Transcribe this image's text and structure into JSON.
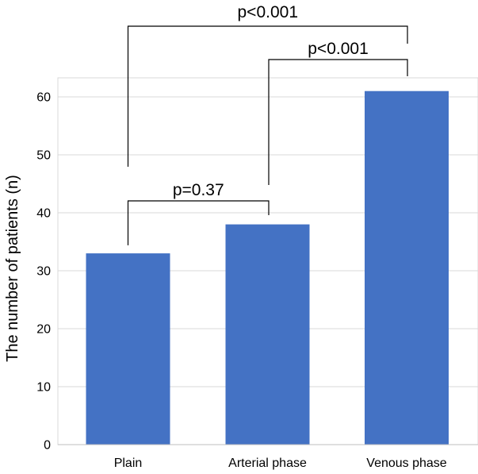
{
  "chart_data": {
    "type": "bar",
    "title": "",
    "xlabel": "",
    "ylabel": "The number of patients (n)",
    "categories": [
      "Plain",
      "Arterial phase",
      "Venous phase"
    ],
    "values": [
      33,
      38,
      61
    ],
    "ylim": [
      0,
      65
    ],
    "yticks": [
      0,
      10,
      20,
      30,
      40,
      50,
      60
    ],
    "grid": true,
    "legend": "none",
    "bar_color": "#4472C4",
    "grid_color": "#D9D9D9",
    "annotations": [
      {
        "label": "p=0.37",
        "from": 0,
        "to": 1
      },
      {
        "label": "p<0.001",
        "from": 1,
        "to": 2
      },
      {
        "label": "p<0.001",
        "from": 0,
        "to": 2
      }
    ]
  }
}
